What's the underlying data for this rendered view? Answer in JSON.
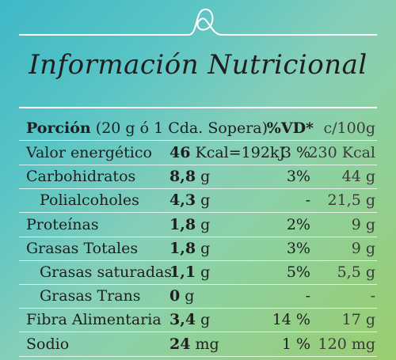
{
  "title": "Información Nutricional",
  "header": {
    "portion_label": "Porción",
    "portion_detail": "(20 g ó 1 Cda. Sopera).",
    "vd_label": "%VD*",
    "per_label": "c/100g"
  },
  "rows": [
    {
      "label": "Valor energético",
      "amount": "46",
      "unit": "Kcal=192kJ",
      "vd": "3 %",
      "per100": "230 Kcal"
    },
    {
      "label": "Carbohidratos",
      "amount": "8,8",
      "unit": "g",
      "vd": "3%",
      "per100": "44 g"
    },
    {
      "label": "Polialcoholes",
      "amount": "4,3",
      "unit": "g",
      "vd": "-",
      "per100": "21,5 g"
    },
    {
      "label": "Proteínas",
      "amount": "1,8",
      "unit": "g",
      "vd": "2%",
      "per100": "9 g"
    },
    {
      "label": "Grasas Totales",
      "amount": "1,8",
      "unit": "g",
      "vd": "3%",
      "per100": "9 g"
    },
    {
      "label": "Grasas saturadas",
      "amount": "1,1",
      "unit": "g",
      "vd": "5%",
      "per100": "5,5 g"
    },
    {
      "label": "Grasas Trans",
      "amount": "0",
      "unit": "g",
      "vd": "-",
      "per100": "-"
    },
    {
      "label": "Fibra Alimentaria",
      "amount": "3,4",
      "unit": "g",
      "vd": "14 %",
      "per100": "17 g"
    },
    {
      "label": "Sodio",
      "amount": "24",
      "unit": "mg",
      "vd": "1 %",
      "per100": "120 mg"
    }
  ],
  "colors": {
    "background_start": "#3fb8c7",
    "background_end": "#9acd6e",
    "text": "#1e1e1e",
    "lines": "#ffffff"
  }
}
